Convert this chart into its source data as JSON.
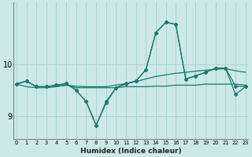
{
  "xlabel": "Humidex (Indice chaleur)",
  "background_color": "#cce8e8",
  "grid_color": "#aad4d4",
  "line_color": "#1a7a6e",
  "x_ticks": [
    0,
    1,
    2,
    3,
    4,
    5,
    6,
    7,
    8,
    9,
    10,
    11,
    12,
    13,
    14,
    15,
    16,
    17,
    18,
    19,
    20,
    21,
    22,
    23
  ],
  "y_ticks": [
    9,
    10
  ],
  "ylim": [
    8.55,
    11.2
  ],
  "xlim": [
    -0.3,
    23.3
  ],
  "figsize": [
    3.2,
    2.0
  ],
  "dpi": 100,
  "series": [
    {
      "y": [
        9.62,
        9.68,
        9.57,
        9.57,
        9.58,
        9.6,
        9.58,
        9.57,
        9.57,
        9.57,
        9.6,
        9.63,
        9.67,
        9.72,
        9.77,
        9.8,
        9.83,
        9.85,
        9.87,
        9.89,
        9.91,
        9.92,
        9.88,
        9.85
      ],
      "marker": false,
      "linewidth": 0.9
    },
    {
      "y": [
        9.62,
        9.68,
        9.57,
        9.57,
        9.6,
        9.63,
        9.5,
        9.28,
        8.82,
        9.25,
        9.55,
        9.62,
        9.68,
        9.9,
        10.62,
        10.82,
        10.78,
        9.72,
        9.78,
        9.85,
        9.93,
        9.93,
        9.58,
        9.57
      ],
      "marker": true,
      "linewidth": 0.9
    },
    {
      "y": [
        9.62,
        9.57,
        9.55,
        9.55,
        9.57,
        9.6,
        9.55,
        9.55,
        9.55,
        9.55,
        9.55,
        9.57,
        9.57,
        9.57,
        9.58,
        9.58,
        9.6,
        9.6,
        9.6,
        9.62,
        9.62,
        9.62,
        9.62,
        9.6
      ],
      "marker": false,
      "linewidth": 0.9
    },
    {
      "y": [
        9.62,
        9.68,
        9.57,
        9.57,
        9.6,
        9.63,
        9.5,
        9.28,
        8.82,
        9.28,
        9.55,
        9.63,
        9.68,
        9.9,
        10.62,
        10.82,
        10.78,
        9.72,
        9.78,
        9.85,
        9.93,
        9.93,
        9.42,
        9.57
      ],
      "marker": true,
      "linewidth": 0.9
    }
  ]
}
